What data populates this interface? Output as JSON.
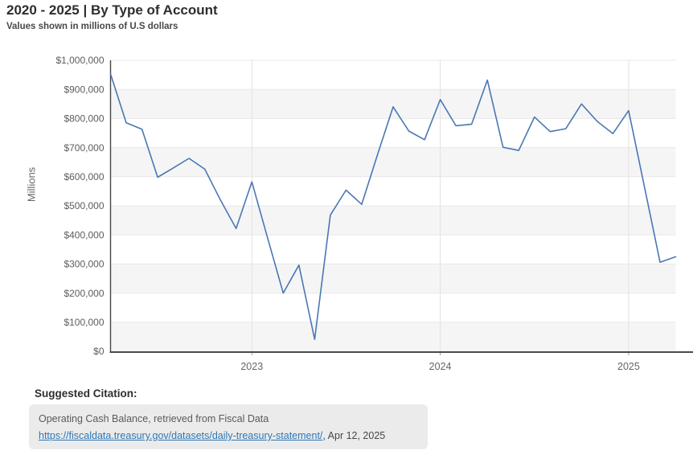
{
  "header": {
    "title": "2020 - 2025 | By Type of Account",
    "subtitle": "Values shown in millions of U.S dollars"
  },
  "chart_data": {
    "type": "line",
    "title": "2020 - 2025 | By Type of Account",
    "subtitle": "Values shown in millions of U.S dollars",
    "xlabel": "",
    "ylabel": "Millions",
    "ylim": [
      0,
      1000000
    ],
    "y_tick_step": 100000,
    "y_tick_prefix": "$",
    "grid": "alternating horizontal bands with horizontal gridlines and vertical year gridlines",
    "legend_position": "none",
    "line_color": "#4a77b4",
    "band_color": "#f5f5f5",
    "x_ticks": [
      {
        "label": "2023",
        "index": 9
      },
      {
        "label": "2024",
        "index": 21
      },
      {
        "label": "2025",
        "index": 33
      }
    ],
    "series": [
      {
        "name": "Operating Cash Balance",
        "x": [
          "2022-04",
          "2022-05",
          "2022-06",
          "2022-07",
          "2022-08",
          "2022-09",
          "2022-10",
          "2022-11",
          "2022-12",
          "2023-01",
          "2023-02",
          "2023-03",
          "2023-04",
          "2023-05",
          "2023-06",
          "2023-07",
          "2023-08",
          "2023-09",
          "2023-10",
          "2023-11",
          "2023-12",
          "2024-01",
          "2024-02",
          "2024-03",
          "2024-04",
          "2024-05",
          "2024-06",
          "2024-07",
          "2024-08",
          "2024-09",
          "2024-10",
          "2024-11",
          "2024-12",
          "2025-01",
          "2025-02",
          "2025-03",
          "2025-04"
        ],
        "values": [
          953000,
          785000,
          763000,
          598000,
          630000,
          663000,
          626000,
          520000,
          422000,
          582000,
          390000,
          200000,
          296000,
          41000,
          468000,
          554000,
          505000,
          675000,
          840000,
          757000,
          727000,
          865000,
          775000,
          780000,
          932000,
          701000,
          690000,
          805000,
          755000,
          765000,
          850000,
          790000,
          748000,
          827000,
          568000,
          306000,
          325000
        ]
      }
    ]
  },
  "citation": {
    "heading": "Suggested Citation:",
    "line1": "Operating Cash Balance, retrieved from Fiscal Data",
    "link": "https://fiscaldata.treasury.gov/datasets/daily-treasury-statement/",
    "suffix": ", Apr 12, 2025",
    "link_color": "#2e78b5"
  }
}
